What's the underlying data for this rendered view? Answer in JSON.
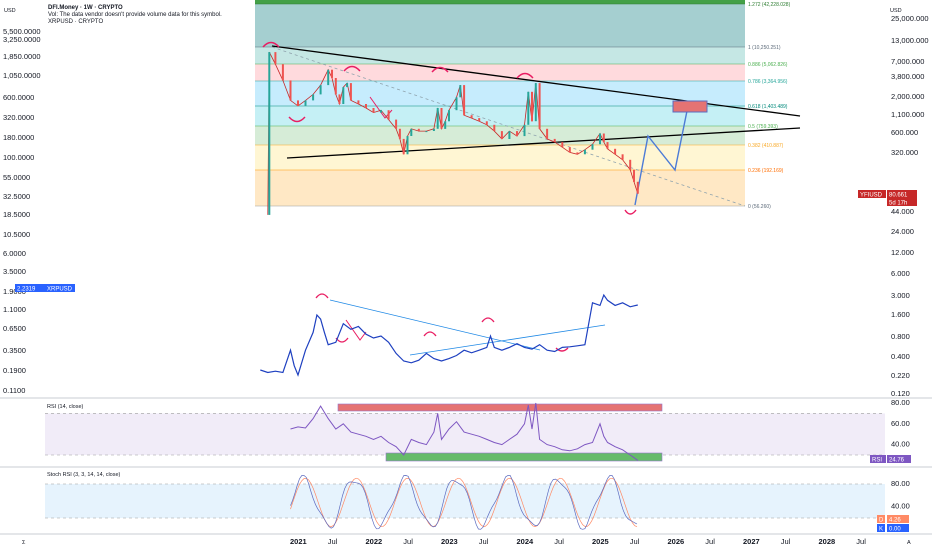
{
  "header": {
    "title": "DFI.Money · 1W · CRYPTO",
    "volume_note": "Vol: The data vendor doesn't provide volume data for this symbol.",
    "compare_symbol": "XRPUSD · CRYPTO"
  },
  "colors": {
    "price_line": "#000000",
    "xrp_line": "#1e40c0",
    "rsi_line": "#7e57c2",
    "red_tag": "#c62828",
    "blue_tag": "#2962ff",
    "arrow": "#e91e63",
    "projection": "#4c7bd6"
  },
  "axes": {
    "left_unit": "USD",
    "right_unit": "USD",
    "left_ticks": [
      "5,500.0000",
      "3,250.0000",
      "1,850.0000",
      "1,050.0000",
      "600.0000",
      "320.0000",
      "180.0000",
      "100.0000",
      "55.0000",
      "32.5000",
      "18.5000",
      "10.5000",
      "6.0000",
      "3.5000",
      "1.9000",
      "1.1000",
      "0.6500",
      "0.3500",
      "0.1900",
      "0.1100"
    ],
    "right_ticks": [
      "25,000.000",
      "13,000.000",
      "7,000.000",
      "3,800.000",
      "2,000.000",
      "1,100.000",
      "600.000",
      "320.000",
      "44.000",
      "24.000",
      "12.000",
      "6.000",
      "3.000",
      "1.600",
      "0.800",
      "0.400",
      "0.220",
      "0.120"
    ],
    "x_labels": [
      "2021",
      "Jul",
      "2022",
      "Jul",
      "2023",
      "Jul",
      "2024",
      "Jul",
      "2025",
      "Jul",
      "2026",
      "Jul",
      "2027",
      "Jul",
      "2028",
      "Jul"
    ]
  },
  "chart_data": [
    {
      "type": "line",
      "symbol": "YFIUSD",
      "log_scale": true,
      "fib_levels": [
        {
          "ratio": "1.272",
          "value": "(42,228.028)",
          "label": "1.272 (42,228.028)"
        },
        {
          "ratio": "1",
          "value": "(10,250.251)",
          "label": "1 (10,250.251)"
        },
        {
          "ratio": "0.886",
          "value": "(5,062.826)",
          "label": "0.886 (5,062.826)"
        },
        {
          "ratio": "0.786",
          "value": "(3,364.956)",
          "label": "0.786 (3,364.956)"
        },
        {
          "ratio": "0.618",
          "value": "(1,403.489)",
          "label": "0.618 (1,403.489)"
        },
        {
          "ratio": "0.5",
          "value": "(759.393)",
          "label": "0.5 (759.393)"
        },
        {
          "ratio": "0.382",
          "value": "(410.887)",
          "label": "0.382 (410.887)"
        },
        {
          "ratio": "0.236",
          "value": "(192.169)",
          "label": "0.236 (192.169)"
        },
        {
          "ratio": "0",
          "value": "(56.260)",
          "label": "0 (56.260)"
        }
      ],
      "price_points": [
        [
          2020.6,
          40
        ],
        [
          2020.62,
          9000
        ],
        [
          2020.7,
          6000
        ],
        [
          2020.8,
          3500
        ],
        [
          2020.9,
          1800
        ],
        [
          2021.0,
          1500
        ],
        [
          2021.1,
          1800
        ],
        [
          2021.2,
          2200
        ],
        [
          2021.3,
          3000
        ],
        [
          2021.4,
          5000
        ],
        [
          2021.45,
          3800
        ],
        [
          2021.5,
          2200
        ],
        [
          2021.55,
          1600
        ],
        [
          2021.6,
          2800
        ],
        [
          2021.65,
          3200
        ],
        [
          2021.7,
          1800
        ],
        [
          2021.8,
          1600
        ],
        [
          2021.9,
          1400
        ],
        [
          2022.0,
          1200
        ],
        [
          2022.1,
          1300
        ],
        [
          2022.2,
          950
        ],
        [
          2022.3,
          700
        ],
        [
          2022.35,
          500
        ],
        [
          2022.4,
          300
        ],
        [
          2022.45,
          550
        ],
        [
          2022.5,
          700
        ],
        [
          2022.6,
          650
        ],
        [
          2022.7,
          650
        ],
        [
          2022.8,
          700
        ],
        [
          2022.85,
          1400
        ],
        [
          2022.9,
          700
        ],
        [
          2022.95,
          900
        ],
        [
          2023.0,
          1300
        ],
        [
          2023.1,
          2000
        ],
        [
          2023.15,
          3000
        ],
        [
          2023.2,
          1100
        ],
        [
          2023.3,
          1000
        ],
        [
          2023.4,
          900
        ],
        [
          2023.5,
          800
        ],
        [
          2023.6,
          650
        ],
        [
          2023.7,
          500
        ],
        [
          2023.8,
          650
        ],
        [
          2023.9,
          550
        ],
        [
          2024.0,
          800
        ],
        [
          2024.05,
          2400
        ],
        [
          2024.1,
          900
        ],
        [
          2024.15,
          3200
        ],
        [
          2024.2,
          700
        ],
        [
          2024.3,
          500
        ],
        [
          2024.4,
          450
        ],
        [
          2024.5,
          380
        ],
        [
          2024.6,
          320
        ],
        [
          2024.7,
          300
        ],
        [
          2024.8,
          350
        ],
        [
          2024.9,
          420
        ],
        [
          2025.0,
          600
        ],
        [
          2025.05,
          450
        ],
        [
          2025.1,
          360
        ],
        [
          2025.2,
          300
        ],
        [
          2025.3,
          250
        ],
        [
          2025.4,
          180
        ],
        [
          2025.45,
          120
        ],
        [
          2025.5,
          80.661
        ]
      ],
      "last_price": "80.661",
      "last_price_tag": "YFIUSD",
      "countdown": "5d 17h"
    },
    {
      "type": "line",
      "symbol": "XRPUSD",
      "last_price": "2.2319",
      "xrp_points": [
        [
          2020.5,
          0.26
        ],
        [
          2020.6,
          0.24
        ],
        [
          2020.7,
          0.25
        ],
        [
          2020.8,
          0.24
        ],
        [
          2020.9,
          0.5
        ],
        [
          2020.95,
          0.3
        ],
        [
          2021.0,
          0.22
        ],
        [
          2021.1,
          0.5
        ],
        [
          2021.2,
          0.9
        ],
        [
          2021.25,
          1.6
        ],
        [
          2021.3,
          1.4
        ],
        [
          2021.35,
          0.9
        ],
        [
          2021.4,
          0.6
        ],
        [
          2021.5,
          0.65
        ],
        [
          2021.6,
          1.2
        ],
        [
          2021.7,
          1.0
        ],
        [
          2021.8,
          1.1
        ],
        [
          2021.9,
          0.85
        ],
        [
          2022.0,
          0.75
        ],
        [
          2022.1,
          0.8
        ],
        [
          2022.2,
          0.65
        ],
        [
          2022.3,
          0.45
        ],
        [
          2022.4,
          0.35
        ],
        [
          2022.5,
          0.33
        ],
        [
          2022.6,
          0.36
        ],
        [
          2022.7,
          0.45
        ],
        [
          2022.8,
          0.38
        ],
        [
          2022.9,
          0.35
        ],
        [
          2023.0,
          0.38
        ],
        [
          2023.1,
          0.42
        ],
        [
          2023.2,
          0.5
        ],
        [
          2023.3,
          0.46
        ],
        [
          2023.4,
          0.5
        ],
        [
          2023.5,
          0.55
        ],
        [
          2023.55,
          0.8
        ],
        [
          2023.6,
          0.55
        ],
        [
          2023.7,
          0.5
        ],
        [
          2023.8,
          0.55
        ],
        [
          2023.9,
          0.62
        ],
        [
          2024.0,
          0.55
        ],
        [
          2024.1,
          0.52
        ],
        [
          2024.2,
          0.6
        ],
        [
          2024.3,
          0.5
        ],
        [
          2024.4,
          0.48
        ],
        [
          2024.5,
          0.55
        ],
        [
          2024.6,
          0.56
        ],
        [
          2024.7,
          0.58
        ],
        [
          2024.8,
          0.6
        ],
        [
          2024.85,
          1.2
        ],
        [
          2024.9,
          2.4
        ],
        [
          2025.0,
          2.2
        ],
        [
          2025.05,
          3.1
        ],
        [
          2025.1,
          2.6
        ],
        [
          2025.2,
          2.2
        ],
        [
          2025.3,
          2.4
        ],
        [
          2025.4,
          2.1
        ],
        [
          2025.5,
          2.2319
        ]
      ]
    },
    {
      "type": "line",
      "title": "RSI (14, close)",
      "last_value": "24.76",
      "last_tag": "RSI",
      "ticks": [
        "80.00",
        "60.00",
        "40.00"
      ],
      "levels": [
        70,
        30
      ]
    },
    {
      "type": "line",
      "title": "Stoch RSI (3, 3, 14, 14, close)",
      "ticks": [
        "80.00",
        "40.00"
      ],
      "d_label": "D",
      "k_label": "K",
      "d_value": "4.26",
      "k_value": "0.00"
    }
  ],
  "footer": {
    "left_glyph": "Σ",
    "right_glyph": "A"
  }
}
